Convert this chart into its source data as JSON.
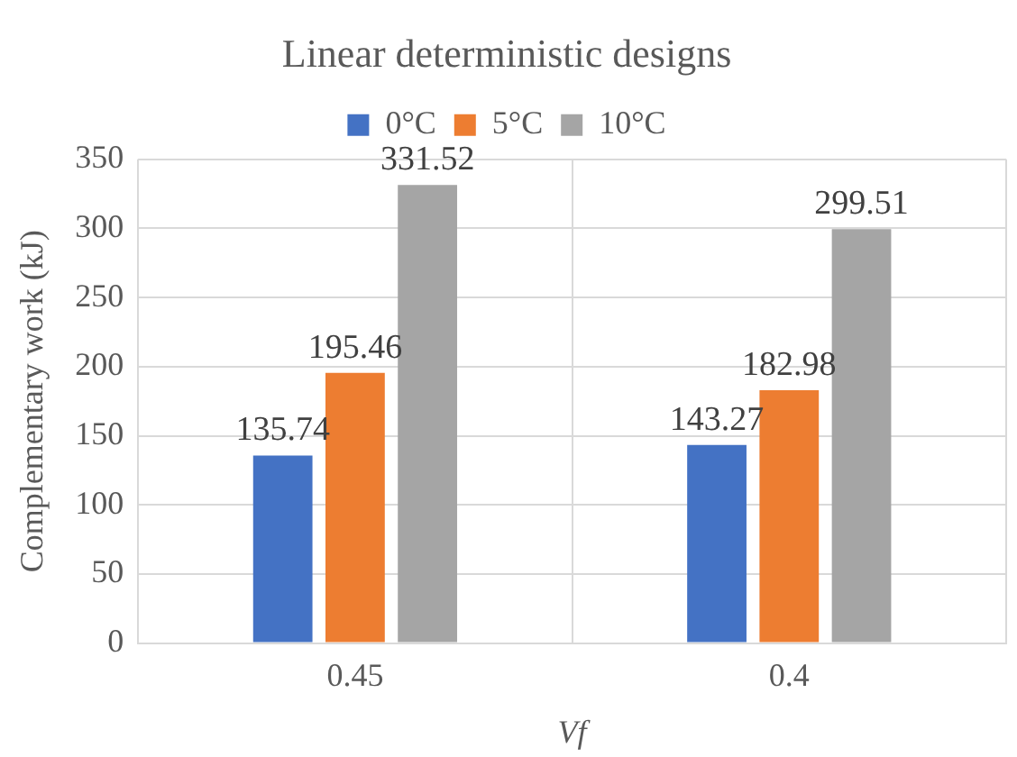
{
  "chart_data": {
    "type": "bar",
    "title": "Linear deterministic designs",
    "xlabel": "Vf",
    "ylabel": "Complementary work (kJ)",
    "categories": [
      "0.45",
      "0.4"
    ],
    "series": [
      {
        "name": "0°C",
        "color": "#4472c4",
        "values": [
          135.74,
          143.27
        ]
      },
      {
        "name": "5°C",
        "color": "#ed7d31",
        "values": [
          195.46,
          182.98
        ]
      },
      {
        "name": "10°C",
        "color": "#a5a5a5",
        "values": [
          331.52,
          299.51
        ]
      }
    ],
    "ylim": [
      0,
      350
    ],
    "yticks": [
      0,
      50,
      100,
      150,
      200,
      250,
      300,
      350
    ],
    "grid": true,
    "legend": "top",
    "data_labels": true
  }
}
